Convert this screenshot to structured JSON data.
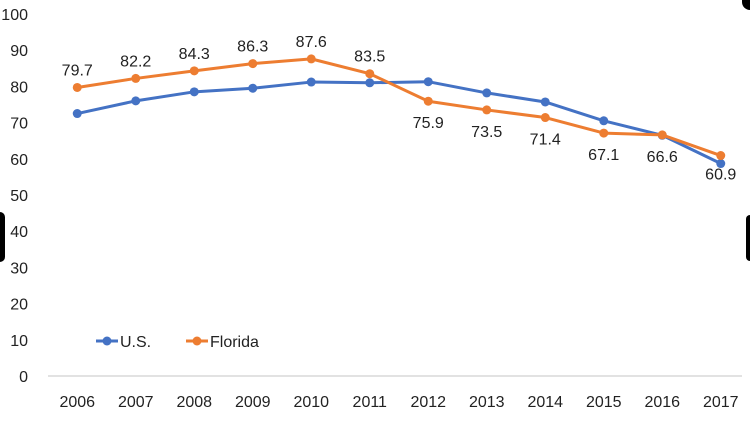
{
  "chart_data": {
    "type": "line",
    "categories": [
      "2006",
      "2007",
      "2008",
      "2009",
      "2010",
      "2011",
      "2012",
      "2013",
      "2014",
      "2015",
      "2016",
      "2017"
    ],
    "ylim": [
      0,
      100
    ],
    "yticks": [
      0,
      10,
      20,
      30,
      40,
      50,
      60,
      70,
      80,
      90,
      100
    ],
    "grid": false,
    "legend_position": "bottom-left",
    "series": [
      {
        "name": "U.S.",
        "color": "#4472C4",
        "values": [
          72.5,
          76,
          78.5,
          79.5,
          81.2,
          81,
          81.3,
          78.2,
          75.7,
          70.5,
          66.5,
          58.7
        ],
        "labels": [
          "",
          "",
          "",
          "",
          "",
          "",
          "",
          "",
          "",
          "",
          "",
          ""
        ]
      },
      {
        "name": "Florida",
        "color": "#ED7D31",
        "values": [
          79.7,
          82.2,
          84.3,
          86.3,
          87.6,
          83.5,
          75.9,
          73.5,
          71.4,
          67.1,
          66.6,
          60.9
        ],
        "labels": [
          "79.7",
          "82.2",
          "84.3",
          "86.3",
          "87.6",
          "83.5",
          "75.9",
          "73.5",
          "71.4",
          "67.1",
          "66.6",
          "60.9"
        ]
      }
    ]
  }
}
